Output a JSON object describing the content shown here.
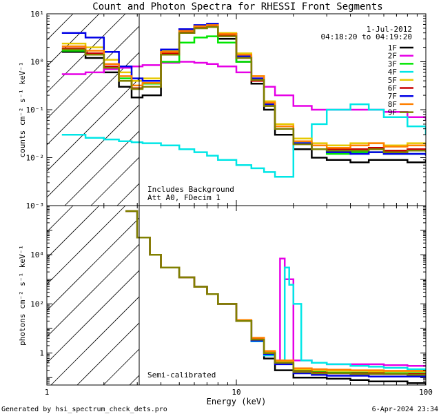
{
  "chart_data": {
    "title": "Count and Photon Spectra for RHESSI Front Segments",
    "xlabel": "Energy (keV)",
    "x_scale": "log",
    "xlim": [
      1,
      100
    ],
    "x_ticks": [
      {
        "v": 1,
        "label": "1"
      },
      {
        "v": 10,
        "label": "10"
      },
      {
        "v": 100,
        "label": "100"
      }
    ],
    "date_line": "1-Jul-2012",
    "time_line": "04:18:20 to 04:19:20",
    "series_names": [
      "1F",
      "2F",
      "3F",
      "4F",
      "5F",
      "6F",
      "7F",
      "8F",
      "9F"
    ],
    "series_colors": [
      "#000000",
      "#e600e6",
      "#00e600",
      "#00e6e6",
      "#e6c800",
      "#c80000",
      "#0000e6",
      "#ff8000",
      "#808000"
    ],
    "panels": [
      {
        "name": "count-spectrum",
        "type": "line",
        "y_scale": "log",
        "ylim": [
          0.001,
          10
        ],
        "ylabel": "counts cm⁻² s⁻¹ keV⁻¹",
        "y_ticks": [
          {
            "v": 0.001,
            "label": "10⁻³"
          },
          {
            "v": 0.01,
            "label": "10⁻²"
          },
          {
            "v": 0.1,
            "label": "10⁻¹"
          },
          {
            "v": 1,
            "label": "10⁰"
          },
          {
            "v": 10,
            "label": "10¹"
          }
        ],
        "annotations": [
          "Includes Background",
          "Att A0, FDecim 1"
        ],
        "hatch_below_keV": 3,
        "series": [
          {
            "name": "1F",
            "x": [
              1.2,
              1.6,
              2.0,
              2.4,
              2.8,
              3.2,
              4,
              5,
              6,
              7,
              8,
              10,
              12,
              14,
              16,
              20,
              25,
              30,
              40,
              50,
              60,
              80,
              100
            ],
            "y": [
              1.6,
              1.2,
              0.6,
              0.3,
              0.18,
              0.2,
              1.5,
              4.0,
              5.0,
              5.4,
              3.0,
              1.0,
              0.35,
              0.1,
              0.03,
              0.015,
              0.01,
              0.009,
              0.008,
              0.009,
              0.009,
              0.008,
              0.009
            ]
          },
          {
            "name": "2F",
            "x": [
              1.2,
              1.6,
              2.0,
              2.4,
              2.8,
              3.2,
              4,
              5,
              6,
              7,
              8,
              10,
              12,
              14,
              16,
              20,
              25,
              30,
              40,
              50,
              60,
              80,
              100
            ],
            "y": [
              0.55,
              0.6,
              0.7,
              0.75,
              0.8,
              0.85,
              0.95,
              1.0,
              0.95,
              0.9,
              0.8,
              0.6,
              0.45,
              0.3,
              0.2,
              0.12,
              0.1,
              0.1,
              0.1,
              0.1,
              0.09,
              0.07,
              0.06
            ]
          },
          {
            "name": "3F",
            "x": [
              1.2,
              1.6,
              2.0,
              2.4,
              2.8,
              3.2,
              4,
              5,
              6,
              7,
              8,
              10,
              12,
              14,
              16,
              20,
              25,
              30,
              40,
              50,
              60,
              80,
              100
            ],
            "y": [
              1.7,
              1.4,
              0.8,
              0.45,
              0.28,
              0.35,
              1.0,
              2.5,
              3.2,
              3.4,
              2.5,
              1.0,
              0.4,
              0.12,
              0.04,
              0.02,
              0.015,
              0.012,
              0.013,
              0.013,
              0.012,
              0.012,
              0.012
            ]
          },
          {
            "name": "4F",
            "x": [
              1.2,
              1.6,
              2.0,
              2.4,
              2.8,
              3.2,
              4,
              5,
              6,
              7,
              8,
              10,
              12,
              14,
              16,
              20,
              25,
              30,
              40,
              50,
              60,
              80,
              100
            ],
            "y": [
              0.03,
              0.026,
              0.024,
              0.022,
              0.021,
              0.02,
              0.018,
              0.015,
              0.013,
              0.011,
              0.009,
              0.007,
              0.006,
              0.005,
              0.004,
              0.02,
              0.05,
              0.1,
              0.13,
              0.1,
              0.07,
              0.045,
              0.03
            ]
          },
          {
            "name": "5F",
            "x": [
              1.2,
              1.6,
              2.0,
              2.4,
              2.8,
              3.2,
              4,
              5,
              6,
              7,
              8,
              10,
              12,
              14,
              16,
              20,
              25,
              30,
              40,
              50,
              60,
              80,
              100
            ],
            "y": [
              2.4,
              2.0,
              1.1,
              0.6,
              0.4,
              0.45,
              1.7,
              4.5,
              5.6,
              5.9,
              4.0,
              1.5,
              0.5,
              0.15,
              0.05,
              0.025,
              0.02,
              0.018,
              0.02,
              0.02,
              0.018,
              0.02,
              0.018
            ]
          },
          {
            "name": "6F",
            "x": [
              1.2,
              1.6,
              2.0,
              2.4,
              2.8,
              3.2,
              4,
              5,
              6,
              7,
              8,
              10,
              12,
              14,
              16,
              20,
              25,
              30,
              40,
              50,
              60,
              80,
              100
            ],
            "y": [
              1.9,
              1.5,
              0.8,
              0.4,
              0.28,
              0.3,
              1.5,
              4.2,
              5.3,
              5.6,
              3.5,
              1.2,
              0.4,
              0.12,
              0.04,
              0.02,
              0.015,
              0.015,
              0.015,
              0.016,
              0.014,
              0.015,
              0.015
            ]
          },
          {
            "name": "7F",
            "x": [
              1.2,
              1.6,
              2.0,
              2.4,
              2.8,
              3.2,
              4,
              5,
              6,
              7,
              8,
              10,
              12,
              14,
              16,
              20,
              25,
              30,
              40,
              50,
              60,
              80,
              100
            ],
            "y": [
              4.0,
              3.2,
              1.6,
              0.8,
              0.45,
              0.4,
              1.8,
              4.8,
              5.8,
              6.2,
              3.8,
              1.3,
              0.45,
              0.13,
              0.04,
              0.02,
              0.015,
              0.013,
              0.012,
              0.013,
              0.012,
              0.012,
              0.011
            ]
          },
          {
            "name": "8F",
            "x": [
              1.2,
              1.6,
              2.0,
              2.4,
              2.8,
              3.2,
              4,
              5,
              6,
              7,
              8,
              10,
              12,
              14,
              16,
              20,
              25,
              30,
              40,
              50,
              60,
              80,
              100
            ],
            "y": [
              2.1,
              1.7,
              0.9,
              0.5,
              0.32,
              0.36,
              1.6,
              4.4,
              5.5,
              5.8,
              3.8,
              1.4,
              0.5,
              0.14,
              0.045,
              0.022,
              0.018,
              0.016,
              0.018,
              0.02,
              0.017,
              0.018,
              0.017
            ]
          },
          {
            "name": "9F",
            "x": [
              1.2,
              1.6,
              2.0,
              2.4,
              2.8,
              3.2,
              4,
              5,
              6,
              7,
              8,
              10,
              12,
              14,
              16,
              20,
              25,
              30,
              40,
              50,
              60,
              80,
              100
            ],
            "y": [
              1.8,
              1.4,
              0.75,
              0.4,
              0.27,
              0.3,
              1.4,
              4.0,
              5.0,
              5.3,
              3.4,
              1.2,
              0.42,
              0.12,
              0.04,
              0.019,
              0.015,
              0.014,
              0.014,
              0.015,
              0.013,
              0.014,
              0.013
            ]
          }
        ]
      },
      {
        "name": "photon-spectrum",
        "type": "line",
        "y_scale": "log",
        "ylim": [
          0.05,
          1000000
        ],
        "ylabel": "photons cm⁻² s⁻¹ keV⁻¹",
        "y_ticks": [
          {
            "v": 1,
            "label": "1"
          },
          {
            "v": 100,
            "label": "10²"
          },
          {
            "v": 10000,
            "label": "10⁴"
          }
        ],
        "annotations": [
          "Semi-calibrated"
        ],
        "hatch_below_keV": 3,
        "series": [
          {
            "name": "1F",
            "x": [
              2.6,
              3.0,
              3.5,
              4,
              5,
              6,
              7,
              8,
              10,
              12,
              14,
              16,
              20,
              25,
              30,
              40,
              50,
              60,
              80,
              100
            ],
            "y": [
              600000,
              50000,
              10000,
              3000,
              1200,
              500,
              250,
              100,
              20,
              3,
              0.6,
              0.2,
              0.1,
              0.1,
              0.09,
              0.08,
              0.07,
              0.07,
              0.06,
              0.05
            ]
          },
          {
            "name": "2F",
            "x": [
              2.6,
              3.0,
              3.5,
              4,
              5,
              6,
              7,
              8,
              10,
              12,
              14,
              16,
              17,
              18,
              20,
              25,
              30,
              40,
              50,
              60,
              80,
              100
            ],
            "y": [
              600000,
              50000,
              10000,
              3000,
              1200,
              500,
              250,
              100,
              20,
              3,
              0.8,
              0.4,
              7000,
              1000,
              0.5,
              0.4,
              0.35,
              0.35,
              0.35,
              0.32,
              0.3,
              0.28
            ]
          },
          {
            "name": "3F",
            "x": [
              2.6,
              3.0,
              3.5,
              4,
              5,
              6,
              7,
              8,
              10,
              12,
              14,
              16,
              20,
              25,
              30,
              40,
              50,
              60,
              80,
              100
            ],
            "y": [
              600000,
              50000,
              10000,
              3000,
              1200,
              500,
              250,
              100,
              20,
              4,
              1,
              0.4,
              0.2,
              0.17,
              0.16,
              0.16,
              0.16,
              0.15,
              0.15,
              0.15
            ]
          },
          {
            "name": "4F",
            "x": [
              2.6,
              3.0,
              3.5,
              4,
              5,
              6,
              7,
              8,
              10,
              12,
              14,
              16,
              18,
              19,
              20,
              22,
              25,
              30,
              40,
              50,
              60,
              80,
              100
            ],
            "y": [
              600000,
              50000,
              10000,
              3000,
              1200,
              500,
              250,
              100,
              20,
              3,
              0.8,
              0.5,
              3000,
              600,
              100,
              0.5,
              0.4,
              0.35,
              0.3,
              0.28,
              0.25,
              0.22,
              0.2
            ]
          },
          {
            "name": "5F",
            "x": [
              2.6,
              3.0,
              3.5,
              4,
              5,
              6,
              7,
              8,
              10,
              12,
              14,
              16,
              20,
              25,
              30,
              40,
              50,
              60,
              80,
              100
            ],
            "y": [
              600000,
              50000,
              10000,
              3000,
              1200,
              500,
              250,
              100,
              22,
              4,
              1.1,
              0.45,
              0.22,
              0.2,
              0.19,
              0.19,
              0.18,
              0.18,
              0.18,
              0.17
            ]
          },
          {
            "name": "6F",
            "x": [
              2.6,
              3.0,
              3.5,
              4,
              5,
              6,
              7,
              8,
              10,
              12,
              14,
              16,
              20,
              25,
              30,
              40,
              50,
              60,
              80,
              100
            ],
            "y": [
              600000,
              50000,
              10000,
              3000,
              1200,
              500,
              250,
              100,
              21,
              3.6,
              1,
              0.4,
              0.18,
              0.16,
              0.15,
              0.15,
              0.15,
              0.14,
              0.14,
              0.13
            ]
          },
          {
            "name": "7F",
            "x": [
              2.6,
              3.0,
              3.5,
              4,
              5,
              6,
              7,
              8,
              10,
              12,
              14,
              16,
              20,
              25,
              30,
              40,
              50,
              60,
              80,
              100
            ],
            "y": [
              600000,
              50000,
              10000,
              3000,
              1200,
              500,
              250,
              100,
              20,
              3.2,
              0.9,
              0.35,
              0.15,
              0.13,
              0.12,
              0.12,
              0.11,
              0.11,
              0.11,
              0.1
            ]
          },
          {
            "name": "8F",
            "x": [
              2.6,
              3.0,
              3.5,
              4,
              5,
              6,
              7,
              8,
              10,
              12,
              14,
              16,
              20,
              25,
              30,
              40,
              50,
              60,
              80,
              100
            ],
            "y": [
              600000,
              50000,
              10000,
              3000,
              1200,
              500,
              250,
              100,
              22,
              4.2,
              1.2,
              0.5,
              0.24,
              0.22,
              0.21,
              0.2,
              0.2,
              0.19,
              0.19,
              0.18
            ]
          },
          {
            "name": "9F",
            "x": [
              2.6,
              3.0,
              3.5,
              4,
              5,
              6,
              7,
              8,
              10,
              12,
              14,
              16,
              20,
              25,
              30,
              40,
              50,
              60,
              80,
              100
            ],
            "y": [
              600000,
              50000,
              10000,
              3000,
              1200,
              500,
              250,
              100,
              20,
              3.5,
              1,
              0.4,
              0.17,
              0.15,
              0.15,
              0.14,
              0.14,
              0.14,
              0.13,
              0.13
            ]
          }
        ]
      }
    ]
  },
  "footer": {
    "generated_by": "Generated by hsi_spectrum_check_dets.pro",
    "timestamp": "6-Apr-2024 23:34"
  }
}
